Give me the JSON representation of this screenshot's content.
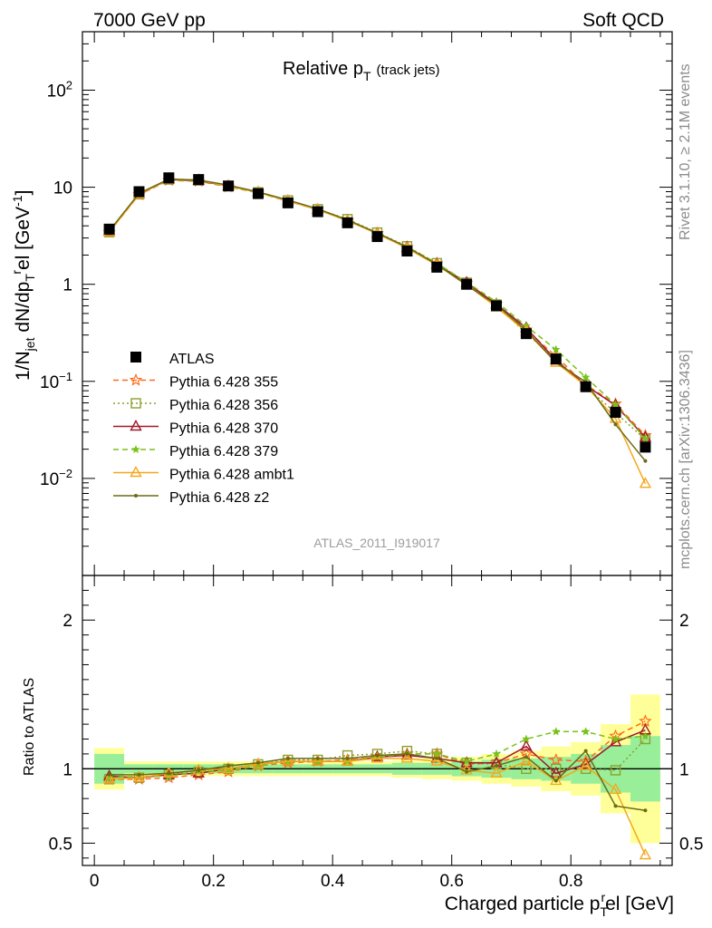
{
  "header": {
    "left": "7000 GeV pp",
    "right": "Soft QCD",
    "side_top": "Rivet 3.1.10, ≥ 2.1M events",
    "side_bottom": "mcplots.cern.ch [arXiv:1306.3436]",
    "watermark": "ATLAS_2011_I919017"
  },
  "chart_data": {
    "type": "scatter",
    "title": "Relative p_T (track jets)",
    "title_main": "Relative p",
    "title_sub": "T",
    "title_tail": "(track jets)",
    "ylabel": "1/N_jet dN/dp_T^rel [GeV^-1]",
    "ratio_ylabel": "Ratio to ATLAS",
    "xlabel": "Charged particle p_T^rel [GeV]",
    "xlim": [
      -0.02,
      0.97
    ],
    "ylim_log": [
      0.001,
      400
    ],
    "ratio_ylim": [
      0.35,
      2.3
    ],
    "x_ticks": [
      "0",
      "0.2",
      "0.4",
      "0.6",
      "0.8"
    ],
    "y_ticks": [
      "10^-2",
      "10^-1",
      "1",
      "10",
      "10^2"
    ],
    "ratio_ticks": [
      "0.5",
      "1",
      "2"
    ],
    "legend_position": "lower-left",
    "x": [
      0.025,
      0.075,
      0.125,
      0.175,
      0.225,
      0.275,
      0.325,
      0.375,
      0.425,
      0.475,
      0.525,
      0.575,
      0.625,
      0.675,
      0.725,
      0.775,
      0.825,
      0.875,
      0.925
    ],
    "data": {
      "name": "ATLAS",
      "values": [
        3.7,
        9.0,
        12.5,
        12.0,
        10.3,
        8.6,
        6.9,
        5.6,
        4.3,
        3.1,
        2.2,
        1.5,
        1.0,
        0.6,
        0.31,
        0.17,
        0.088,
        0.048,
        0.021
      ]
    },
    "series": [
      {
        "name": "Pythia 6.428 355",
        "color": "#ff6b1a",
        "marker": "star-open",
        "dash": "6,4",
        "ratio": [
          0.93,
          0.93,
          0.94,
          0.96,
          0.98,
          1.02,
          1.04,
          1.05,
          1.06,
          1.08,
          1.1,
          1.1,
          1.03,
          1.04,
          1.1,
          1.06,
          1.05,
          1.22,
          1.32
        ]
      },
      {
        "name": "Pythia 6.428 356",
        "color": "#8ca02c",
        "marker": "square-open",
        "dash": "2,3",
        "ratio": [
          0.93,
          0.94,
          0.96,
          0.98,
          1.0,
          1.03,
          1.06,
          1.06,
          1.09,
          1.1,
          1.12,
          1.1,
          1.04,
          1.03,
          1.0,
          1.0,
          1.0,
          0.99,
          1.2
        ]
      },
      {
        "name": "Pythia 6.428 370",
        "color": "#a0192d",
        "marker": "triangle-open",
        "dash": "",
        "ratio": [
          0.95,
          0.94,
          0.96,
          0.97,
          1.0,
          1.03,
          1.05,
          1.05,
          1.05,
          1.08,
          1.09,
          1.07,
          1.04,
          1.04,
          1.15,
          0.97,
          1.03,
          1.18,
          1.26
        ]
      },
      {
        "name": "Pythia 6.428 379",
        "color": "#79c21a",
        "marker": "star-filled",
        "dash": "6,4",
        "ratio": [
          0.94,
          0.95,
          0.95,
          0.98,
          0.99,
          1.02,
          1.05,
          1.05,
          1.05,
          1.08,
          1.1,
          1.1,
          1.05,
          1.1,
          1.2,
          1.25,
          1.25,
          1.2,
          1.22
        ]
      },
      {
        "name": "Pythia 6.428 ambt1",
        "color": "#f5a81c",
        "marker": "triangle-open",
        "dash": "",
        "ratio": [
          0.93,
          0.94,
          0.97,
          0.99,
          1.0,
          1.03,
          1.05,
          1.05,
          1.05,
          1.07,
          1.07,
          1.05,
          0.99,
          0.97,
          1.05,
          0.92,
          1.02,
          0.86,
          0.42
        ]
      },
      {
        "name": "Pythia 6.428 z2",
        "color": "#6b6b12",
        "marker": "dot",
        "dash": "",
        "ratio": [
          0.96,
          0.96,
          0.97,
          0.99,
          1.02,
          1.04,
          1.07,
          1.07,
          1.07,
          1.09,
          1.1,
          1.07,
          0.98,
          1.02,
          1.08,
          0.92,
          1.12,
          0.75,
          0.72
        ]
      }
    ],
    "bands": {
      "green_half": [
        0.1,
        0.03,
        0.03,
        0.03,
        0.03,
        0.03,
        0.03,
        0.03,
        0.03,
        0.03,
        0.04,
        0.04,
        0.05,
        0.06,
        0.07,
        0.08,
        0.1,
        0.16,
        0.22
      ],
      "yellow_half": [
        0.14,
        0.05,
        0.05,
        0.05,
        0.05,
        0.05,
        0.05,
        0.05,
        0.05,
        0.05,
        0.06,
        0.07,
        0.08,
        0.1,
        0.12,
        0.15,
        0.18,
        0.3,
        0.5
      ]
    }
  }
}
